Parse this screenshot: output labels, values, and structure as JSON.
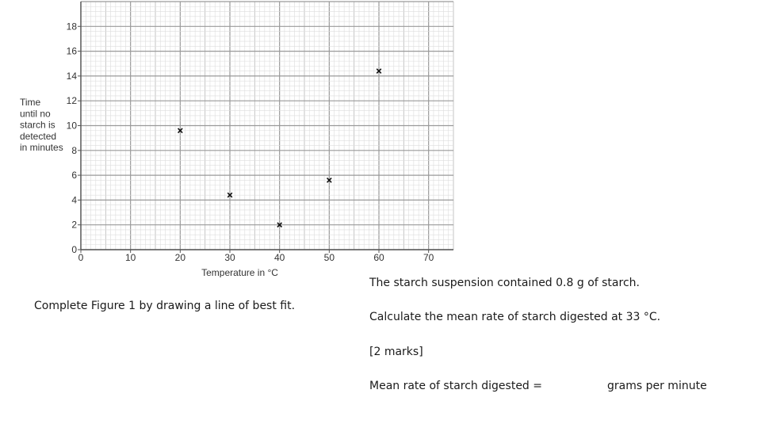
{
  "chart_data": {
    "type": "scatter",
    "marker": "x",
    "xlabel": "Temperature in °C",
    "ylabel_lines": [
      "Time",
      "until no",
      "starch is",
      "detected",
      "in minutes"
    ],
    "xlim": [
      0,
      75
    ],
    "ylim": [
      0,
      20
    ],
    "x_ticks": [
      0,
      10,
      20,
      30,
      40,
      50,
      60,
      70
    ],
    "y_ticks": [
      0,
      2,
      4,
      6,
      8,
      10,
      12,
      14,
      16,
      18
    ],
    "grid": "major and minor graph-paper grid",
    "points": [
      {
        "x": 20,
        "y": 9.6
      },
      {
        "x": 30,
        "y": 4.4
      },
      {
        "x": 40,
        "y": 2.0
      },
      {
        "x": 50,
        "y": 5.6
      },
      {
        "x": 60,
        "y": 14.4
      }
    ]
  },
  "question": {
    "complete_figure": "Complete Figure 1 by drawing a line of best fit.",
    "suspension": "The starch suspension contained 0.8 g of starch.",
    "calculate": "Calculate the mean rate of starch digested at 33 °C.",
    "marks": "[2 marks]",
    "answer_label": "Mean rate of starch digested =",
    "answer_unit": "grams per minute"
  }
}
